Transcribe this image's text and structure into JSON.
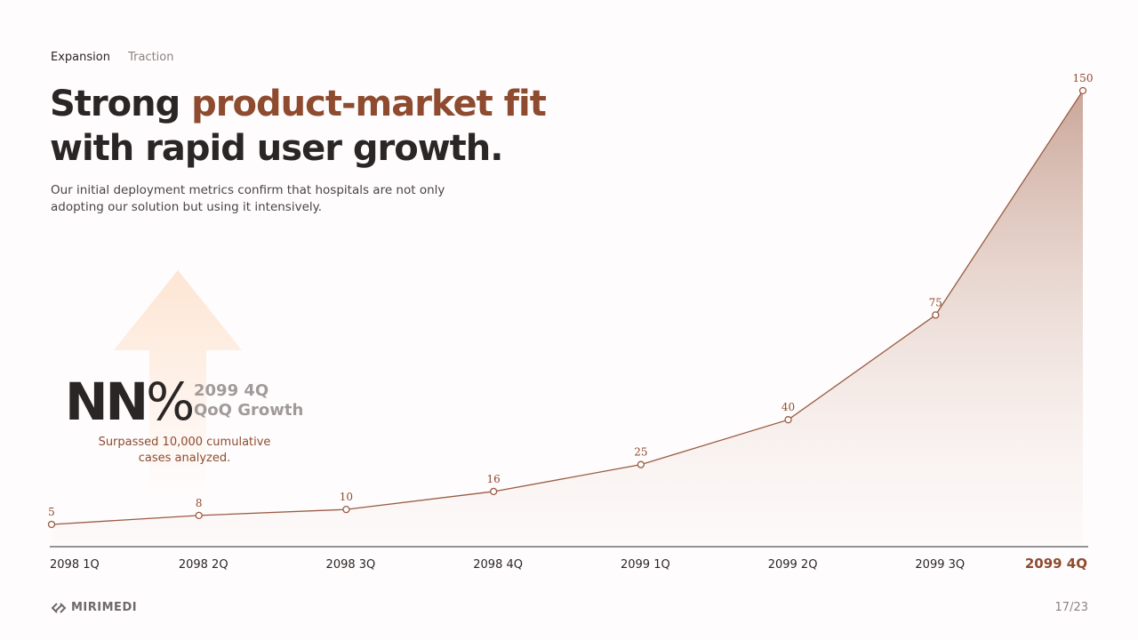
{
  "tabs": [
    {
      "label": "Expansion",
      "active": true
    },
    {
      "label": "Traction",
      "active": false
    }
  ],
  "title": {
    "line1_plain": "Strong ",
    "line1_accent": "product-market fit",
    "line2": "with rapid user growth."
  },
  "subtitle": "Our initial deployment metrics confirm that hospitals are not only adopting our solution but using it intensively.",
  "kpi": {
    "value": "NN",
    "unit": "%",
    "label_line1": "2099 4Q",
    "label_line2": "QoQ Growth",
    "note": "Surpassed 10,000 cumulative cases analyzed.",
    "icon": "up-arrow-icon"
  },
  "colors": {
    "accent": "#8e4b2f",
    "line": "#9a5a42",
    "text": "#2b2626",
    "arrow": "#fde3cf"
  },
  "chart_data": {
    "type": "area",
    "categories": [
      "2098 1Q",
      "2098 2Q",
      "2098 3Q",
      "2098 4Q",
      "2099 1Q",
      "2099 2Q",
      "2099 3Q",
      "2099 4Q"
    ],
    "values": [
      5,
      8,
      10,
      16,
      25,
      40,
      75,
      150
    ],
    "highlighted_category": "2099 4Q",
    "ylim": [
      0,
      150
    ],
    "grid": false,
    "data_labels": true
  },
  "footer": {
    "brand": "MIRIMEDI",
    "page": "17/23"
  }
}
